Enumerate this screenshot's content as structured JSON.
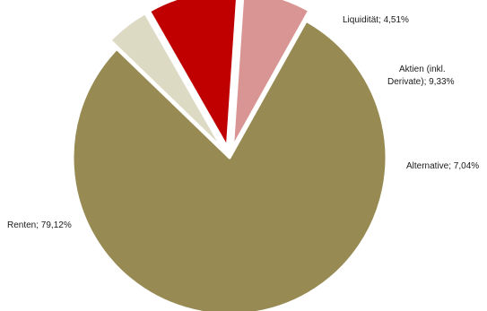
{
  "chart_data": {
    "type": "pie",
    "title": "",
    "slices": [
      {
        "label": "Renten; 79,12%",
        "name": "Renten",
        "value": 79.12,
        "color": "#978a52",
        "exploded": false
      },
      {
        "label": "Liquidität; 4,51%",
        "name": "Liquidität",
        "value": 4.51,
        "color": "#dddac4",
        "exploded": true
      },
      {
        "label_lines": [
          "Aktien (inkl.",
          "Derivate); 9,33%"
        ],
        "name": "Aktien (inkl. Derivate)",
        "value": 9.33,
        "color": "#c00000",
        "exploded": true
      },
      {
        "label": "Alternative; 7,04%",
        "name": "Alternative",
        "value": 7.04,
        "color": "#d99594",
        "exploded": true
      }
    ],
    "legend": "none"
  }
}
